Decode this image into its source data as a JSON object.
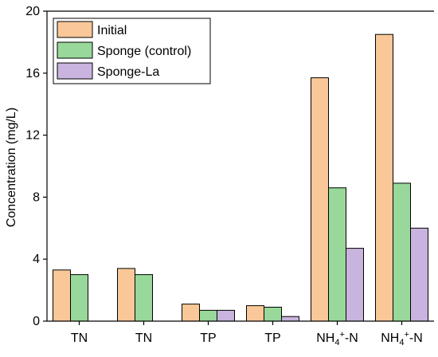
{
  "chart_data": {
    "type": "bar",
    "categories": [
      "TN",
      "TN",
      "TP",
      "TP",
      "NH4+-N",
      "NH4+-N"
    ],
    "category_labels": [
      {
        "main": "TN"
      },
      {
        "main": "TN"
      },
      {
        "main": "TP"
      },
      {
        "main": "TP"
      },
      {
        "main": "NH",
        "sub": "4",
        "sup": "+",
        "tail": "-N"
      },
      {
        "main": "NH",
        "sub": "4",
        "sup": "+",
        "tail": "-N"
      }
    ],
    "series": [
      {
        "name": "Initial",
        "color": "#FAC898",
        "values": [
          3.3,
          3.4,
          1.1,
          1.0,
          15.7,
          18.5
        ]
      },
      {
        "name": "Sponge (control)",
        "color": "#98D89A",
        "values": [
          3.0,
          3.0,
          0.7,
          0.9,
          8.6,
          8.9
        ]
      },
      {
        "name": "Sponge-La",
        "color": "#C8B4DE",
        "values": [
          null,
          null,
          0.7,
          0.3,
          4.7,
          6.0
        ]
      }
    ],
    "ylabel": "Concentration (mg/L)",
    "xlabel": "",
    "ylim": [
      0,
      20
    ],
    "yticks": [
      0,
      4,
      8,
      12,
      16,
      20
    ],
    "grid": false,
    "legend_position": "top-left"
  }
}
